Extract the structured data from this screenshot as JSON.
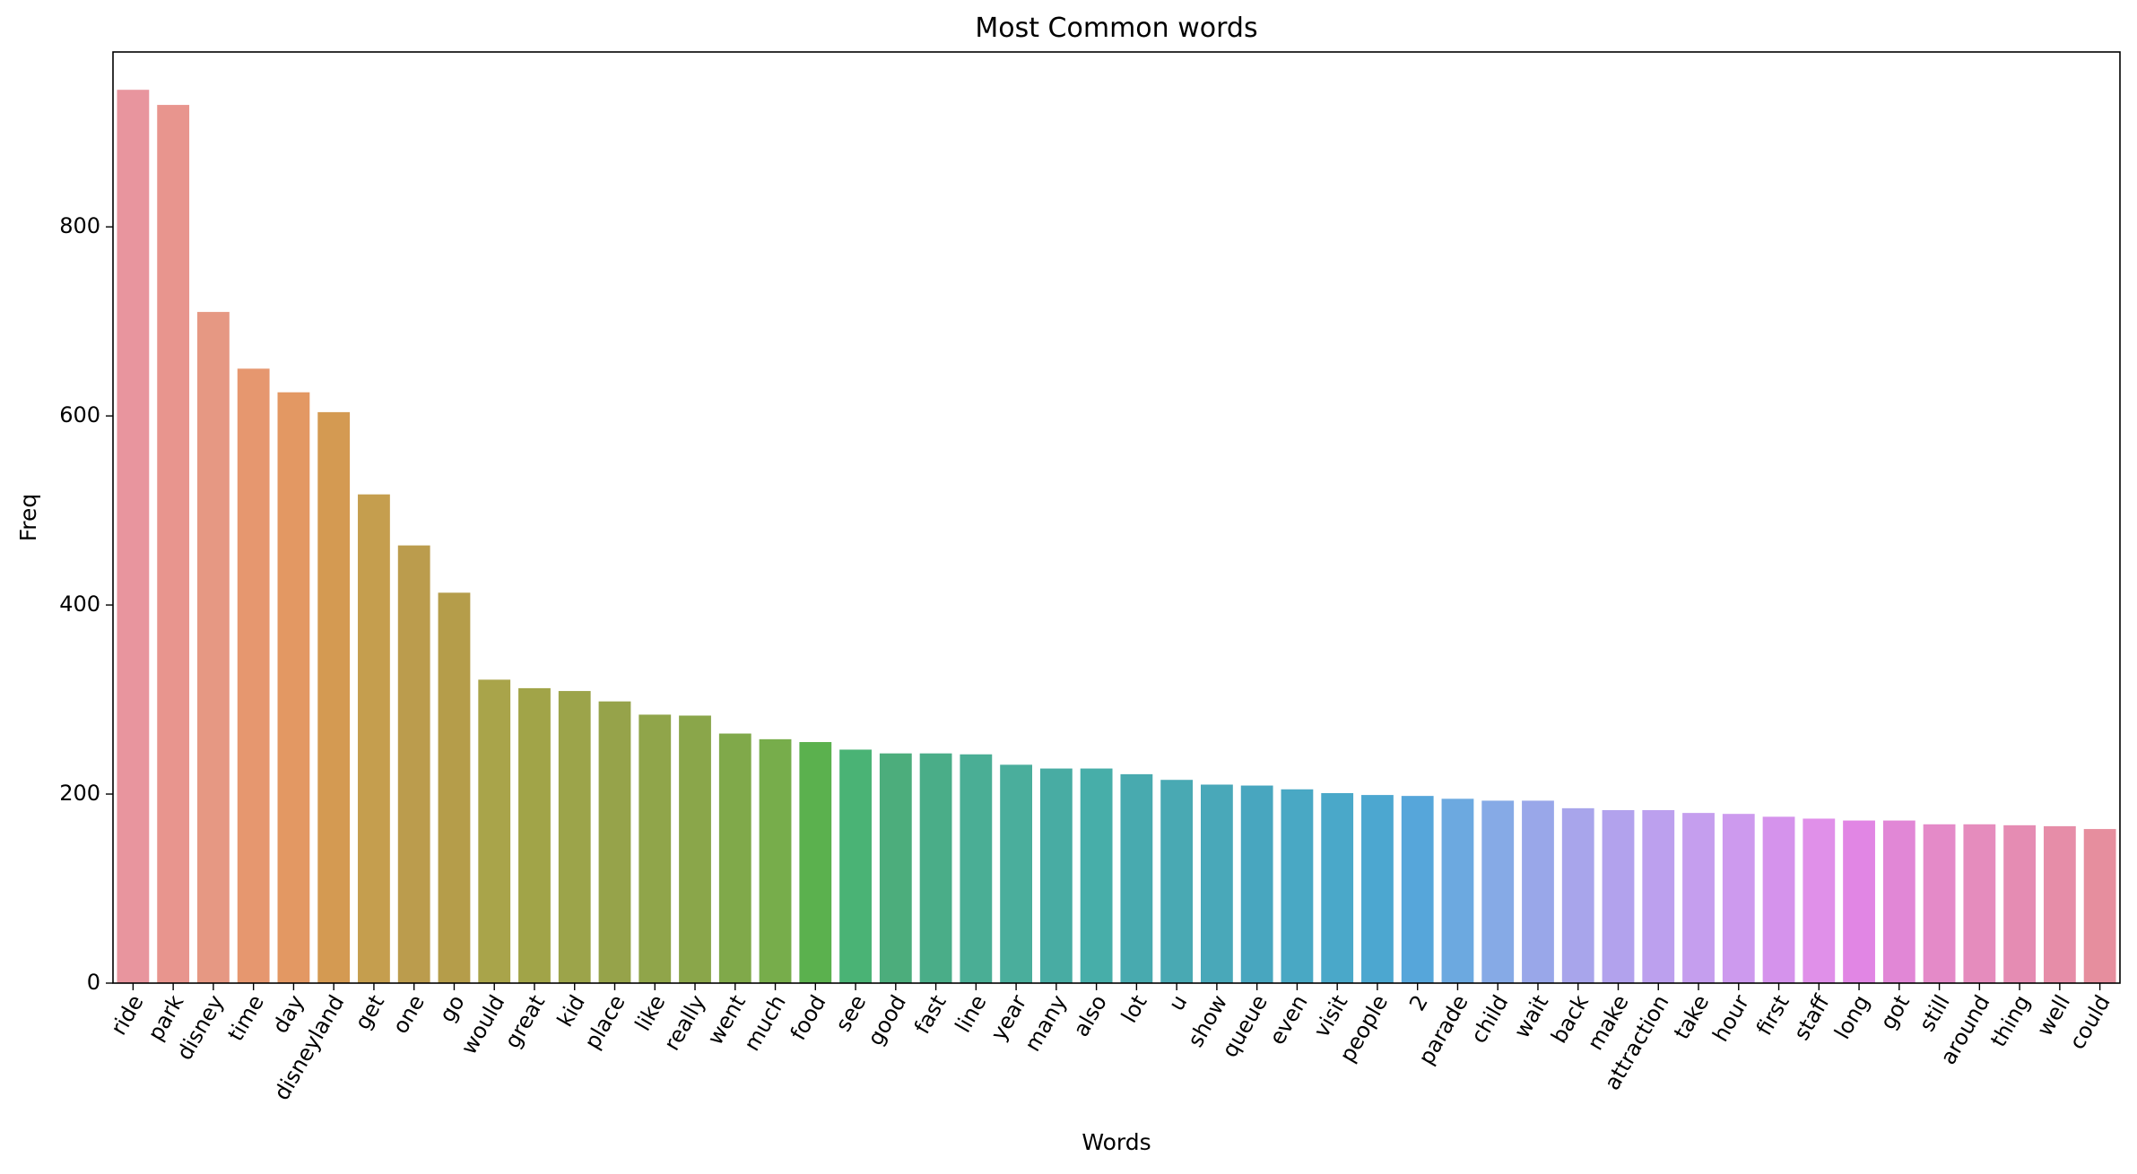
{
  "chart_data": {
    "type": "bar",
    "title": "Most Common words",
    "xlabel": "Words",
    "ylabel": "Freq",
    "ylim": [
      0,
      985
    ],
    "yticks": [
      0,
      200,
      400,
      600,
      800
    ],
    "grid": false,
    "legend": "none",
    "categories": [
      "ride",
      "park",
      "disney",
      "time",
      "day",
      "disneyland",
      "get",
      "one",
      "go",
      "would",
      "great",
      "kid",
      "place",
      "like",
      "really",
      "went",
      "much",
      "food",
      "see",
      "good",
      "fast",
      "line",
      "year",
      "many",
      "also",
      "lot",
      "u",
      "show",
      "queue",
      "even",
      "visit",
      "people",
      "2",
      "parade",
      "child",
      "wait",
      "back",
      "make",
      "attraction",
      "take",
      "hour",
      "first",
      "staff",
      "long",
      "got",
      "still",
      "around",
      "thing",
      "well",
      "could"
    ],
    "values": [
      945,
      929,
      710,
      650,
      625,
      604,
      517,
      463,
      413,
      321,
      312,
      309,
      298,
      284,
      283,
      264,
      258,
      255,
      247,
      243,
      243,
      242,
      231,
      227,
      227,
      221,
      215,
      210,
      209,
      205,
      201,
      199,
      198,
      195,
      193,
      193,
      185,
      183,
      183,
      180,
      179,
      176,
      174,
      172,
      172,
      168,
      168,
      167,
      166,
      163
    ],
    "colors": [
      "#e8959e",
      "#e8958e",
      "#e69883",
      "#e6976f",
      "#e39863",
      "#d49a52",
      "#c59e4e",
      "#bb9c4d",
      "#b59d4a",
      "#a9a44a",
      "#a1a448",
      "#9ca44a",
      "#96a34a",
      "#90a54a",
      "#8aa64a",
      "#80a94a",
      "#77ad4b",
      "#5bb14e",
      "#4ab375",
      "#4cad7c",
      "#4aad88",
      "#4aae95",
      "#4aae9c",
      "#48aca3",
      "#47aea9",
      "#48aaaf",
      "#49a9b3",
      "#49a8b9",
      "#48a6bf",
      "#49a8c4",
      "#4aa8c9",
      "#4ca7d0",
      "#56a6da",
      "#6ca9e0",
      "#86aae6",
      "#99a7e9",
      "#a8a5eb",
      "#b2a2ed",
      "#bca0ee",
      "#c59eee",
      "#cd9aee",
      "#d593ec",
      "#e090e9",
      "#e186e4",
      "#e187d6",
      "#e48ac8",
      "#e58cbd",
      "#e58cb3",
      "#e68da8",
      "#e68e9e"
    ]
  }
}
